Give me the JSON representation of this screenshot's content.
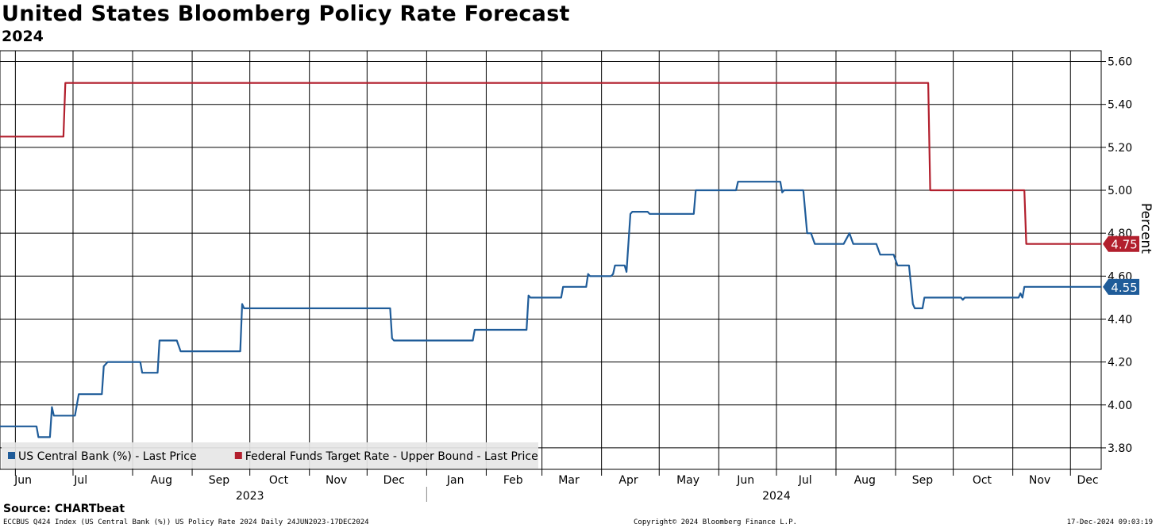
{
  "chart_data": {
    "type": "line",
    "title": "United States Bloomberg Policy Rate Forecast",
    "subtitle": "2024",
    "ylabel": "Percent",
    "ylim": [
      3.7,
      5.65
    ],
    "yticks": [
      "3.80",
      "4.00",
      "4.20",
      "4.40",
      "4.60",
      "4.80",
      "5.00",
      "5.20",
      "5.40",
      "5.60"
    ],
    "xlim": [
      "2023-05-24",
      "2024-12-17"
    ],
    "x_month_labels": [
      {
        "label": "Jun",
        "date": "2023-06-05"
      },
      {
        "label": "Jul",
        "date": "2023-07-05"
      },
      {
        "label": "Aug",
        "date": "2023-08-16"
      },
      {
        "label": "Sep",
        "date": "2023-09-15"
      },
      {
        "label": "Oct",
        "date": "2023-10-16"
      },
      {
        "label": "Nov",
        "date": "2023-11-15"
      },
      {
        "label": "Dec",
        "date": "2023-12-15"
      },
      {
        "label": "Jan",
        "date": "2024-01-16"
      },
      {
        "label": "Feb",
        "date": "2024-02-15"
      },
      {
        "label": "Mar",
        "date": "2024-03-15"
      },
      {
        "label": "Apr",
        "date": "2024-04-15"
      },
      {
        "label": "May",
        "date": "2024-05-16"
      },
      {
        "label": "Jun",
        "date": "2024-06-15"
      },
      {
        "label": "Jul",
        "date": "2024-07-16"
      },
      {
        "label": "Aug",
        "date": "2024-08-16"
      },
      {
        "label": "Sep",
        "date": "2024-09-15"
      },
      {
        "label": "Oct",
        "date": "2024-10-16"
      },
      {
        "label": "Nov",
        "date": "2024-11-15"
      },
      {
        "label": "Dec",
        "date": "2024-12-10"
      }
    ],
    "x_year_labels": [
      {
        "label": "2023",
        "date": "2023-10-01"
      },
      {
        "label": "2024",
        "date": "2024-07-01"
      }
    ],
    "grid": true,
    "legend_position": "bottom-left",
    "series": [
      {
        "name": "US Central Bank (%) - Last Price",
        "color": "#1f5c99",
        "last_value_label": "4.55",
        "points": [
          [
            "2023-05-24",
            3.9
          ],
          [
            "2023-06-12",
            3.9
          ],
          [
            "2023-06-13",
            3.85
          ],
          [
            "2023-06-19",
            3.85
          ],
          [
            "2023-06-20",
            3.99
          ],
          [
            "2023-06-21",
            3.95
          ],
          [
            "2023-07-02",
            3.95
          ],
          [
            "2023-07-04",
            4.05
          ],
          [
            "2023-07-16",
            4.05
          ],
          [
            "2023-07-17",
            4.18
          ],
          [
            "2023-07-19",
            4.2
          ],
          [
            "2023-08-05",
            4.2
          ],
          [
            "2023-08-06",
            4.15
          ],
          [
            "2023-08-14",
            4.15
          ],
          [
            "2023-08-15",
            4.3
          ],
          [
            "2023-08-24",
            4.3
          ],
          [
            "2023-08-26",
            4.25
          ],
          [
            "2023-09-26",
            4.25
          ],
          [
            "2023-09-27",
            4.47
          ],
          [
            "2023-09-28",
            4.45
          ],
          [
            "2023-12-13",
            4.45
          ],
          [
            "2023-12-14",
            4.31
          ],
          [
            "2023-12-15",
            4.3
          ],
          [
            "2024-01-25",
            4.3
          ],
          [
            "2024-01-26",
            4.35
          ],
          [
            "2024-02-22",
            4.35
          ],
          [
            "2024-02-23",
            4.51
          ],
          [
            "2024-02-24",
            4.5
          ],
          [
            "2024-03-11",
            4.5
          ],
          [
            "2024-03-12",
            4.55
          ],
          [
            "2024-03-24",
            4.55
          ],
          [
            "2024-03-25",
            4.61
          ],
          [
            "2024-03-26",
            4.6
          ],
          [
            "2024-04-06",
            4.6
          ],
          [
            "2024-04-07",
            4.61
          ],
          [
            "2024-04-08",
            4.65
          ],
          [
            "2024-04-13",
            4.65
          ],
          [
            "2024-04-14",
            4.62
          ],
          [
            "2024-04-16",
            4.89
          ],
          [
            "2024-04-17",
            4.9
          ],
          [
            "2024-04-25",
            4.9
          ],
          [
            "2024-04-26",
            4.89
          ],
          [
            "2024-05-19",
            4.89
          ],
          [
            "2024-05-20",
            5.0
          ],
          [
            "2024-06-10",
            5.0
          ],
          [
            "2024-06-11",
            5.04
          ],
          [
            "2024-07-03",
            5.04
          ],
          [
            "2024-07-04",
            4.99
          ],
          [
            "2024-07-05",
            5.0
          ],
          [
            "2024-07-15",
            5.0
          ],
          [
            "2024-07-17",
            4.8
          ],
          [
            "2024-07-19",
            4.8
          ],
          [
            "2024-07-21",
            4.75
          ],
          [
            "2024-08-05",
            4.75
          ],
          [
            "2024-08-08",
            4.8
          ],
          [
            "2024-08-10",
            4.75
          ],
          [
            "2024-08-22",
            4.75
          ],
          [
            "2024-08-24",
            4.7
          ],
          [
            "2024-08-31",
            4.7
          ],
          [
            "2024-09-02",
            4.65
          ],
          [
            "2024-09-08",
            4.65
          ],
          [
            "2024-09-10",
            4.47
          ],
          [
            "2024-09-11",
            4.45
          ],
          [
            "2024-09-15",
            4.45
          ],
          [
            "2024-09-16",
            4.5
          ],
          [
            "2024-10-05",
            4.5
          ],
          [
            "2024-10-06",
            4.49
          ],
          [
            "2024-10-07",
            4.5
          ],
          [
            "2024-11-04",
            4.5
          ],
          [
            "2024-11-05",
            4.52
          ],
          [
            "2024-11-06",
            4.5
          ],
          [
            "2024-11-07",
            4.55
          ],
          [
            "2024-12-17",
            4.55
          ]
        ]
      },
      {
        "name": "Federal Funds Target Rate - Upper Bound - Last Price",
        "color": "#b21f2d",
        "last_value_label": "4.75",
        "points": [
          [
            "2023-05-24",
            5.25
          ],
          [
            "2023-06-26",
            5.25
          ],
          [
            "2023-06-27",
            5.5
          ],
          [
            "2024-09-18",
            5.5
          ],
          [
            "2024-09-19",
            5.0
          ],
          [
            "2024-11-07",
            5.0
          ],
          [
            "2024-11-08",
            4.75
          ],
          [
            "2024-12-17",
            4.75
          ]
        ]
      }
    ]
  },
  "footer": {
    "source": "Source: CHARTbeat",
    "left": "ECCBUS Q424 Index (US Central Bank (%)) US Policy Rate 2024  Daily 24JUN2023-17DEC2024",
    "center": "Copyright© 2024 Bloomberg Finance L.P.",
    "right": "17-Dec-2024 09:03:19"
  }
}
